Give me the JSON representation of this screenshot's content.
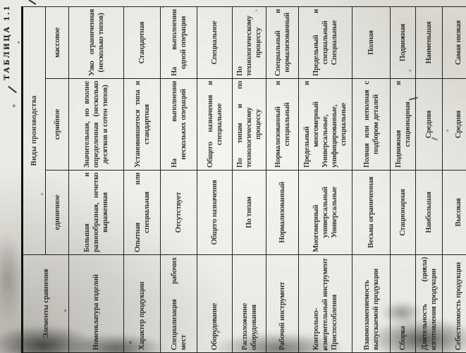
{
  "caption": "ТАБЛИЦА 1.1",
  "table": {
    "corner_header": "Элементы сравнения",
    "group_header": "Виды производства",
    "columns": [
      "единичное",
      "серийное",
      "массовое"
    ],
    "rows": [
      {
        "label": "Номенклатура изделий",
        "cells": [
          "Большая и разнообразная, нечетко выраженная",
          "Значительная, но вполне определенная (несколько десятков и сотен типов)",
          "Узко ограниченная (несколько типов)"
        ]
      },
      {
        "label": "Характер продукции",
        "cells": [
          "Опытная или специальная",
          "Установившегося типа и стандартная",
          "Стандартная"
        ]
      },
      {
        "label": "Специализация рабочих мест",
        "cells": [
          "Отсутствует",
          "На выполнении нескольких операций",
          "На выполнении одной операции"
        ]
      },
      {
        "label": "Оборудование",
        "cells": [
          "Общего назначения",
          "Общего назначения и специальное",
          "Специальное"
        ]
      },
      {
        "label": "Расположение оборудования",
        "cells": [
          "По типам",
          "По типам и по технологическому процессу",
          "По технологическому процессу"
        ]
      },
      {
        "label": "Рабочий инструмент",
        "cells": [
          "Нормализованный",
          "Нормализованный и специальный",
          "Специальный и нормализованный"
        ]
      },
      {
        "label": "Контрольно-измерительный инструмент\nПриспособления",
        "cells": [
          "Многомерный универсальный\nУниверсальные",
          "Предельный и многомерный\nУниверсальные, унифицированные, специальные",
          "Предельный и специальный\nСпециальные"
        ]
      },
      {
        "label": "Взаимозаменяемость выпускаемой продукции",
        "cells": [
          "Весьма ограниченная",
          "Полная или неполная с подбором деталей",
          "Полная"
        ]
      },
      {
        "label": "Сборка",
        "cells": [
          "Стационарная",
          "Подвижная и стационарная",
          "Подвижная"
        ]
      },
      {
        "label": "Длительность (цикла) изготовления продукции",
        "cells": [
          "Наибольшая",
          "Средняя",
          "Наименьшая"
        ]
      },
      {
        "label": "Себестоимость продукции",
        "cells": [
          "Высокая",
          "Средняя",
          "Самая низкая"
        ]
      }
    ]
  },
  "colors": {
    "ink": "#1c1c1c",
    "paper": "#ebe9e3"
  }
}
